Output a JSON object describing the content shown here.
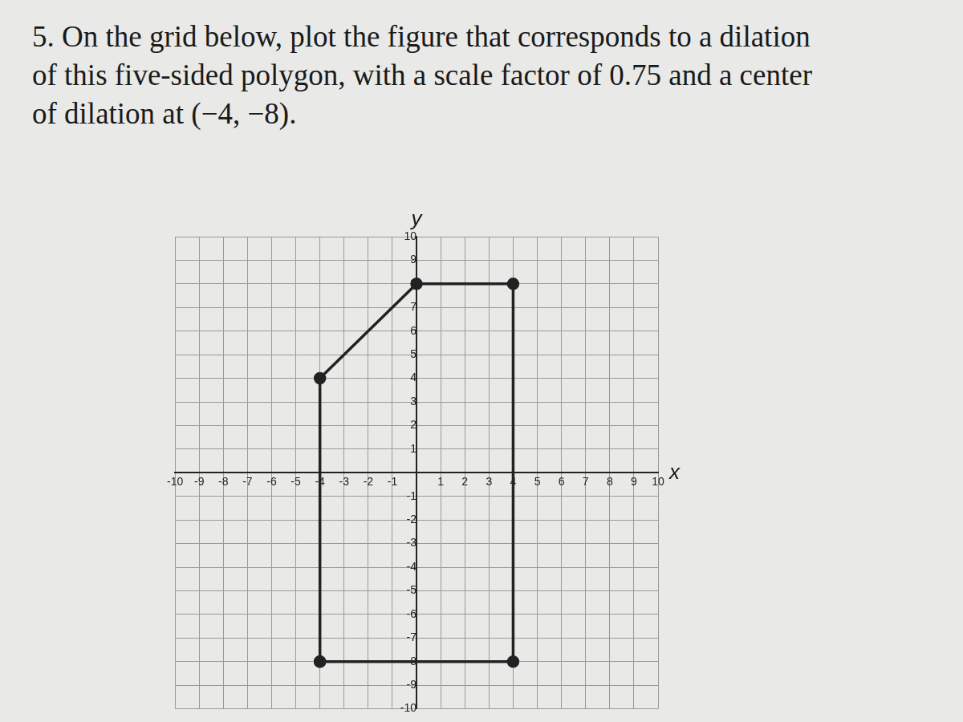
{
  "chart_data": {
    "type": "scatter",
    "title": "5. On the grid below, plot the figure that corresponds to a dilation of this five-sided polygon, with a scale factor of 0.75 and a center of dilation at (−4, −8).",
    "x_label": "x",
    "y_label": "y",
    "x": [
      -4,
      -4,
      0,
      4,
      4
    ],
    "values": [
      -8,
      4,
      8,
      8,
      -8
    ],
    "color": "#222222",
    "marker": "circle",
    "line_style": "solid",
    "xlim": [
      -10,
      10
    ],
    "ylim": [
      -10,
      10
    ],
    "xticks": [
      -10,
      -9,
      -8,
      -7,
      -6,
      -5,
      -4,
      -3,
      -2,
      -1,
      1,
      2,
      3,
      4,
      5,
      6,
      7,
      8,
      9,
      10
    ],
    "yticks": [
      -10,
      -9,
      -8,
      -7,
      -6,
      -5,
      -4,
      -3,
      -2,
      -1,
      1,
      2,
      3,
      4,
      5,
      6,
      7,
      8,
      9,
      10
    ],
    "grid": true
  }
}
